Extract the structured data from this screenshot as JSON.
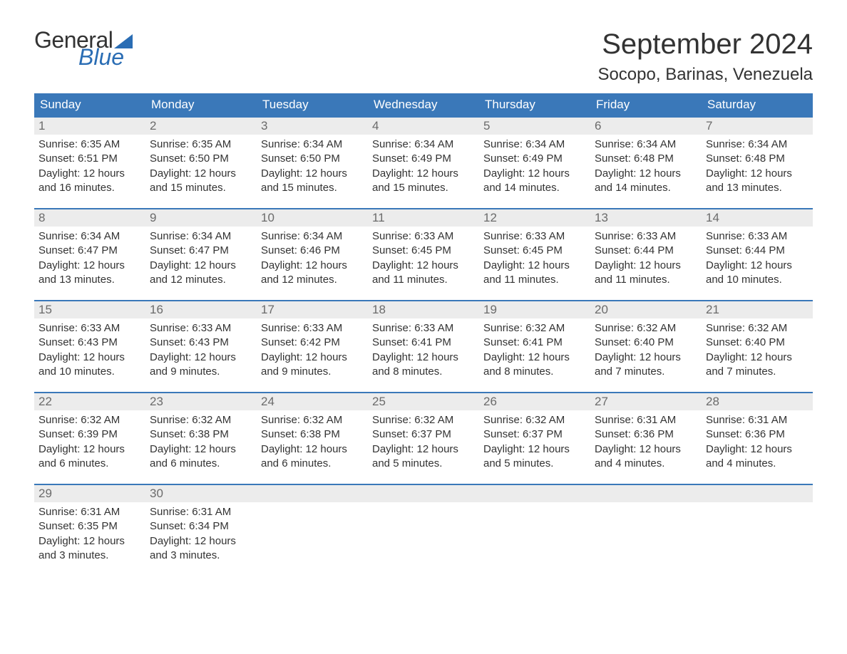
{
  "logo": {
    "word1": "General",
    "word2": "Blue"
  },
  "header": {
    "month_title": "September 2024",
    "location": "Socopo, Barinas, Venezuela"
  },
  "colors": {
    "header_bg": "#3a78b9",
    "header_text": "#ffffff",
    "daynum_bg": "#ececec",
    "daynum_text": "#6b6b6b",
    "row_border": "#3a78b9",
    "body_text": "#333333",
    "brand_blue": "#2a6db4",
    "page_bg": "#ffffff"
  },
  "typography": {
    "month_title_fontsize": 40,
    "location_fontsize": 24,
    "weekday_fontsize": 17,
    "daynum_fontsize": 17,
    "body_fontsize": 15,
    "logo_fontsize": 32
  },
  "weekdays": [
    "Sunday",
    "Monday",
    "Tuesday",
    "Wednesday",
    "Thursday",
    "Friday",
    "Saturday"
  ],
  "weeks": [
    [
      {
        "day": "1",
        "sunrise": "Sunrise: 6:35 AM",
        "sunset": "Sunset: 6:51 PM",
        "daylight1": "Daylight: 12 hours",
        "daylight2": "and 16 minutes."
      },
      {
        "day": "2",
        "sunrise": "Sunrise: 6:35 AM",
        "sunset": "Sunset: 6:50 PM",
        "daylight1": "Daylight: 12 hours",
        "daylight2": "and 15 minutes."
      },
      {
        "day": "3",
        "sunrise": "Sunrise: 6:34 AM",
        "sunset": "Sunset: 6:50 PM",
        "daylight1": "Daylight: 12 hours",
        "daylight2": "and 15 minutes."
      },
      {
        "day": "4",
        "sunrise": "Sunrise: 6:34 AM",
        "sunset": "Sunset: 6:49 PM",
        "daylight1": "Daylight: 12 hours",
        "daylight2": "and 15 minutes."
      },
      {
        "day": "5",
        "sunrise": "Sunrise: 6:34 AM",
        "sunset": "Sunset: 6:49 PM",
        "daylight1": "Daylight: 12 hours",
        "daylight2": "and 14 minutes."
      },
      {
        "day": "6",
        "sunrise": "Sunrise: 6:34 AM",
        "sunset": "Sunset: 6:48 PM",
        "daylight1": "Daylight: 12 hours",
        "daylight2": "and 14 minutes."
      },
      {
        "day": "7",
        "sunrise": "Sunrise: 6:34 AM",
        "sunset": "Sunset: 6:48 PM",
        "daylight1": "Daylight: 12 hours",
        "daylight2": "and 13 minutes."
      }
    ],
    [
      {
        "day": "8",
        "sunrise": "Sunrise: 6:34 AM",
        "sunset": "Sunset: 6:47 PM",
        "daylight1": "Daylight: 12 hours",
        "daylight2": "and 13 minutes."
      },
      {
        "day": "9",
        "sunrise": "Sunrise: 6:34 AM",
        "sunset": "Sunset: 6:47 PM",
        "daylight1": "Daylight: 12 hours",
        "daylight2": "and 12 minutes."
      },
      {
        "day": "10",
        "sunrise": "Sunrise: 6:34 AM",
        "sunset": "Sunset: 6:46 PM",
        "daylight1": "Daylight: 12 hours",
        "daylight2": "and 12 minutes."
      },
      {
        "day": "11",
        "sunrise": "Sunrise: 6:33 AM",
        "sunset": "Sunset: 6:45 PM",
        "daylight1": "Daylight: 12 hours",
        "daylight2": "and 11 minutes."
      },
      {
        "day": "12",
        "sunrise": "Sunrise: 6:33 AM",
        "sunset": "Sunset: 6:45 PM",
        "daylight1": "Daylight: 12 hours",
        "daylight2": "and 11 minutes."
      },
      {
        "day": "13",
        "sunrise": "Sunrise: 6:33 AM",
        "sunset": "Sunset: 6:44 PM",
        "daylight1": "Daylight: 12 hours",
        "daylight2": "and 11 minutes."
      },
      {
        "day": "14",
        "sunrise": "Sunrise: 6:33 AM",
        "sunset": "Sunset: 6:44 PM",
        "daylight1": "Daylight: 12 hours",
        "daylight2": "and 10 minutes."
      }
    ],
    [
      {
        "day": "15",
        "sunrise": "Sunrise: 6:33 AM",
        "sunset": "Sunset: 6:43 PM",
        "daylight1": "Daylight: 12 hours",
        "daylight2": "and 10 minutes."
      },
      {
        "day": "16",
        "sunrise": "Sunrise: 6:33 AM",
        "sunset": "Sunset: 6:43 PM",
        "daylight1": "Daylight: 12 hours",
        "daylight2": "and 9 minutes."
      },
      {
        "day": "17",
        "sunrise": "Sunrise: 6:33 AM",
        "sunset": "Sunset: 6:42 PM",
        "daylight1": "Daylight: 12 hours",
        "daylight2": "and 9 minutes."
      },
      {
        "day": "18",
        "sunrise": "Sunrise: 6:33 AM",
        "sunset": "Sunset: 6:41 PM",
        "daylight1": "Daylight: 12 hours",
        "daylight2": "and 8 minutes."
      },
      {
        "day": "19",
        "sunrise": "Sunrise: 6:32 AM",
        "sunset": "Sunset: 6:41 PM",
        "daylight1": "Daylight: 12 hours",
        "daylight2": "and 8 minutes."
      },
      {
        "day": "20",
        "sunrise": "Sunrise: 6:32 AM",
        "sunset": "Sunset: 6:40 PM",
        "daylight1": "Daylight: 12 hours",
        "daylight2": "and 7 minutes."
      },
      {
        "day": "21",
        "sunrise": "Sunrise: 6:32 AM",
        "sunset": "Sunset: 6:40 PM",
        "daylight1": "Daylight: 12 hours",
        "daylight2": "and 7 minutes."
      }
    ],
    [
      {
        "day": "22",
        "sunrise": "Sunrise: 6:32 AM",
        "sunset": "Sunset: 6:39 PM",
        "daylight1": "Daylight: 12 hours",
        "daylight2": "and 6 minutes."
      },
      {
        "day": "23",
        "sunrise": "Sunrise: 6:32 AM",
        "sunset": "Sunset: 6:38 PM",
        "daylight1": "Daylight: 12 hours",
        "daylight2": "and 6 minutes."
      },
      {
        "day": "24",
        "sunrise": "Sunrise: 6:32 AM",
        "sunset": "Sunset: 6:38 PM",
        "daylight1": "Daylight: 12 hours",
        "daylight2": "and 6 minutes."
      },
      {
        "day": "25",
        "sunrise": "Sunrise: 6:32 AM",
        "sunset": "Sunset: 6:37 PM",
        "daylight1": "Daylight: 12 hours",
        "daylight2": "and 5 minutes."
      },
      {
        "day": "26",
        "sunrise": "Sunrise: 6:32 AM",
        "sunset": "Sunset: 6:37 PM",
        "daylight1": "Daylight: 12 hours",
        "daylight2": "and 5 minutes."
      },
      {
        "day": "27",
        "sunrise": "Sunrise: 6:31 AM",
        "sunset": "Sunset: 6:36 PM",
        "daylight1": "Daylight: 12 hours",
        "daylight2": "and 4 minutes."
      },
      {
        "day": "28",
        "sunrise": "Sunrise: 6:31 AM",
        "sunset": "Sunset: 6:36 PM",
        "daylight1": "Daylight: 12 hours",
        "daylight2": "and 4 minutes."
      }
    ],
    [
      {
        "day": "29",
        "sunrise": "Sunrise: 6:31 AM",
        "sunset": "Sunset: 6:35 PM",
        "daylight1": "Daylight: 12 hours",
        "daylight2": "and 3 minutes."
      },
      {
        "day": "30",
        "sunrise": "Sunrise: 6:31 AM",
        "sunset": "Sunset: 6:34 PM",
        "daylight1": "Daylight: 12 hours",
        "daylight2": "and 3 minutes."
      },
      null,
      null,
      null,
      null,
      null
    ]
  ]
}
